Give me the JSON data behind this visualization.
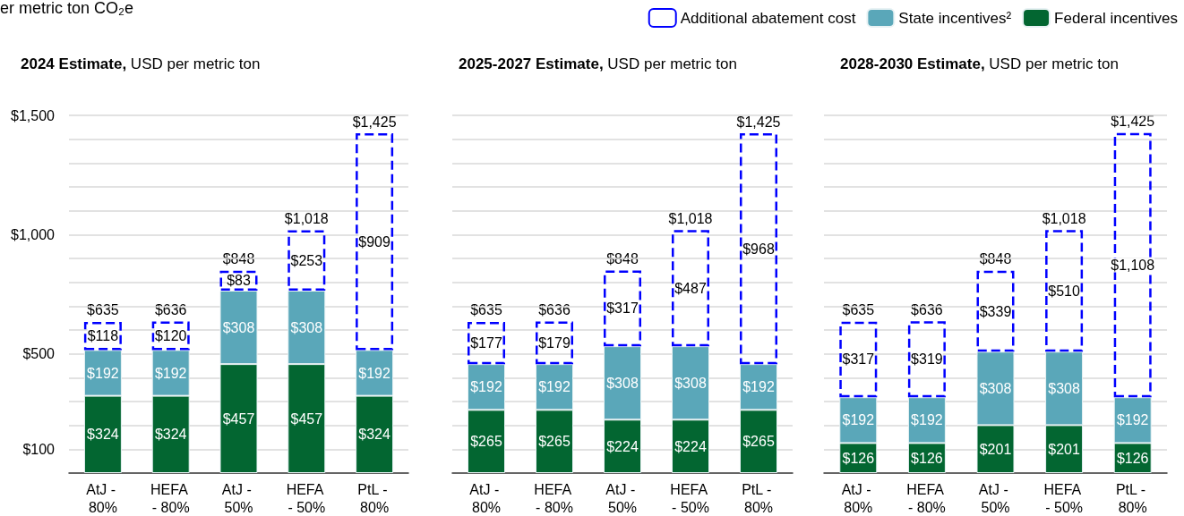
{
  "chart_data": [
    {
      "type": "bar",
      "title": "2024 Estimate, USD per metric ton",
      "annotations": [
        "er metric ton CO₂e"
      ],
      "categories": [
        "AtJ - 80%",
        "HEFA - 80%",
        "AtJ - 50%",
        "HEFA - 50%",
        "PtL - 80%"
      ],
      "stacked": true,
      "ylim": [
        0,
        1500
      ],
      "yticks": [
        {
          "value": 100,
          "label": "$100"
        },
        {
          "value": 200,
          "label": null
        },
        {
          "value": 300,
          "label": null
        },
        {
          "value": 400,
          "label": null
        },
        {
          "value": 500,
          "label": "$500"
        },
        {
          "value": 600,
          "label": null
        },
        {
          "value": 700,
          "label": null
        },
        {
          "value": 800,
          "label": null
        },
        {
          "value": 900,
          "label": null
        },
        {
          "value": 1000,
          "label": "$1,000"
        },
        {
          "value": 1100,
          "label": null
        },
        {
          "value": 1200,
          "label": null
        },
        {
          "value": 1300,
          "label": null
        },
        {
          "value": 1400,
          "label": null
        },
        {
          "value": 1500,
          "label": "$1,500"
        }
      ],
      "grid": "y",
      "totals": [
        "$635",
        "$636",
        "$848",
        "$1,018",
        "$1,425"
      ],
      "series": [
        {
          "color": "#036631",
          "values": [
            324,
            324,
            457,
            457,
            324
          ],
          "value_labels": [
            "$324",
            "$324",
            "$457",
            "$457",
            "$324"
          ]
        },
        {
          "color": "#5aa7b9",
          "values": [
            192,
            192,
            308,
            308,
            192
          ],
          "value_labels": [
            "$192",
            "$192",
            "$308",
            "$308",
            "$192"
          ]
        },
        {
          "color": "#0000ff",
          "line_style": "dashed",
          "values": [
            118,
            120,
            83,
            253,
            909
          ],
          "value_labels": [
            "$118",
            "$120",
            "$83",
            "$253",
            "$909"
          ]
        }
      ]
    },
    {
      "type": "bar",
      "title": "2025-2027 Estimate, USD per metric ton",
      "categories": [
        "AtJ - 80%",
        "HEFA - 80%",
        "AtJ - 50%",
        "HEFA - 50%",
        "PtL - 80%"
      ],
      "stacked": true,
      "tick_labels": "x",
      "legend": "top right",
      "ylim": [
        0,
        1500
      ],
      "yticks": [
        {
          "value": 100,
          "label": null
        },
        {
          "value": 200,
          "label": null
        },
        {
          "value": 300,
          "label": null
        },
        {
          "value": 400,
          "label": null
        },
        {
          "value": 500,
          "label": null
        },
        {
          "value": 600,
          "label": null
        },
        {
          "value": 700,
          "label": null
        },
        {
          "value": 800,
          "label": null
        },
        {
          "value": 900,
          "label": null
        },
        {
          "value": 1000,
          "label": null
        },
        {
          "value": 1100,
          "label": null
        },
        {
          "value": 1200,
          "label": null
        },
        {
          "value": 1300,
          "label": null
        },
        {
          "value": 1400,
          "label": null
        },
        {
          "value": 1500,
          "label": null
        }
      ],
      "grid": "y",
      "totals": [
        "$635",
        "$636",
        "$848",
        "$1,018",
        "$1,425"
      ],
      "series": [
        {
          "name": "Federal incentives",
          "color": "#036631",
          "values": [
            265,
            265,
            224,
            224,
            265
          ],
          "value_labels": [
            "$265",
            "$265",
            "$224",
            "$224",
            "$265"
          ]
        },
        {
          "name": "State incentives²",
          "color": "#5aa7b9",
          "values": [
            192,
            192,
            308,
            308,
            192
          ],
          "value_labels": [
            "$192",
            "$192",
            "$308",
            "$308",
            "$192"
          ]
        },
        {
          "name": "Additional abatement cost",
          "color": "#0000ff",
          "line_style": "dashed",
          "values": [
            177,
            179,
            317,
            487,
            968
          ],
          "value_labels": [
            "$177",
            "$179",
            "$317",
            "$487",
            "$968"
          ]
        }
      ]
    },
    {
      "type": "bar",
      "title": "2028-2030 Estimate, USD per metric ton",
      "categories": [
        "AtJ - 80%",
        "HEFA - 80%",
        "AtJ - 50%",
        "HEFA - 50%",
        "PtL - 80%"
      ],
      "stacked": true,
      "tick_labels": "x",
      "ylim": [
        0,
        1500
      ],
      "yticks": [
        {
          "value": 100,
          "label": null
        },
        {
          "value": 200,
          "label": null
        },
        {
          "value": 300,
          "label": null
        },
        {
          "value": 400,
          "label": null
        },
        {
          "value": 500,
          "label": null
        },
        {
          "value": 600,
          "label": null
        },
        {
          "value": 700,
          "label": null
        },
        {
          "value": 800,
          "label": null
        },
        {
          "value": 900,
          "label": null
        },
        {
          "value": 1000,
          "label": null
        },
        {
          "value": 1100,
          "label": null
        },
        {
          "value": 1200,
          "label": null
        },
        {
          "value": 1300,
          "label": null
        },
        {
          "value": 1400,
          "label": null
        },
        {
          "value": 1500,
          "label": null
        }
      ],
      "grid": "y",
      "totals": [
        "$635",
        "$636",
        "$848",
        "$1,018",
        "$1,425"
      ],
      "series": [
        {
          "color": "#036631",
          "values": [
            126,
            126,
            201,
            201,
            126
          ],
          "value_labels": [
            "$126",
            "$126",
            "$201",
            "$201",
            "$126"
          ]
        },
        {
          "color": "#5aa7b9",
          "values": [
            192,
            192,
            308,
            308,
            192
          ],
          "value_labels": [
            "$192",
            "$192",
            "$308",
            "$308",
            "$192"
          ]
        },
        {
          "color": "#0000ff",
          "line_style": "dashed",
          "values": [
            317,
            319,
            339,
            510,
            1108
          ],
          "value_labels": [
            "$317",
            "$319",
            "$339",
            "$510",
            "$1,108"
          ]
        }
      ]
    }
  ]
}
